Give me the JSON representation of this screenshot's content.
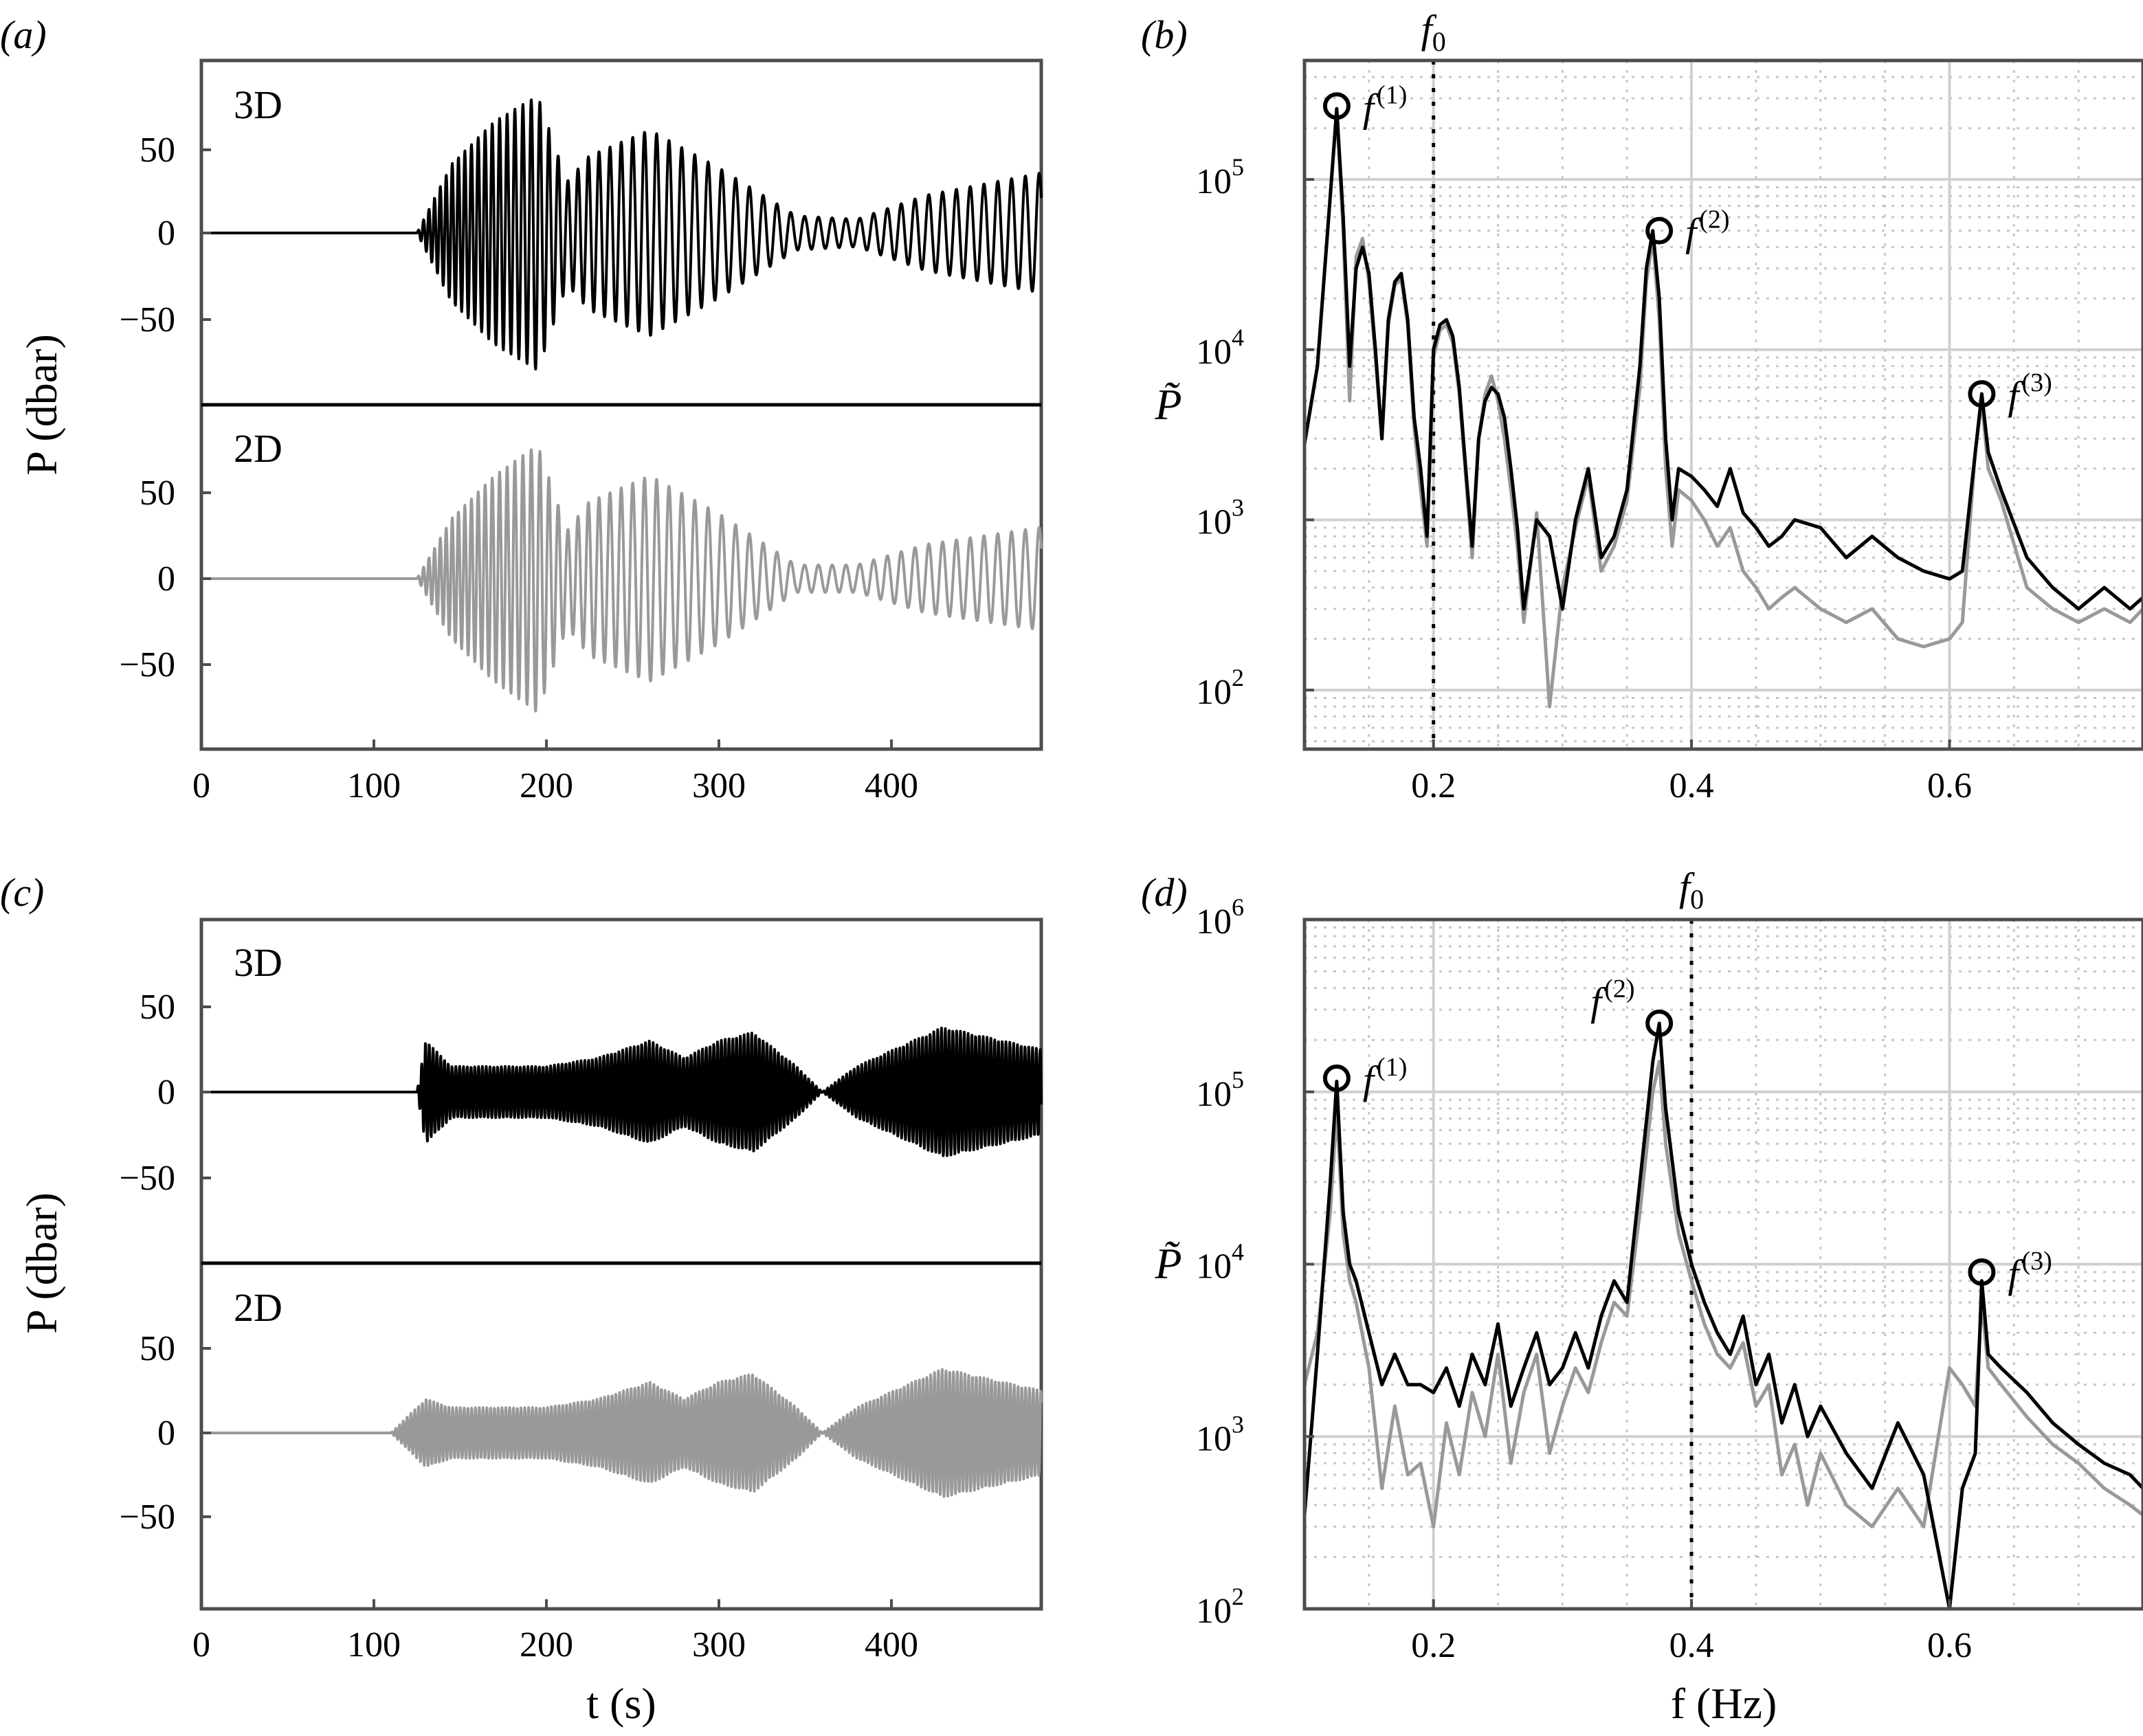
{
  "figure": {
    "panel_labels": [
      "(a)",
      "(b)",
      "(c)",
      "(d)"
    ]
  },
  "colors": {
    "three_d": "#000000",
    "two_d": "#999999",
    "frame": "#4d4d4d",
    "grid": "#cccccc",
    "f0_line": "#000000"
  },
  "chart_data": [
    {
      "id": "a",
      "type": "line",
      "panel_label": "(a)",
      "ylabel": "P (dbar)",
      "xlim": [
        0,
        487
      ],
      "xticks": [
        "0",
        "100",
        "200",
        "300",
        "400"
      ],
      "yticks": [
        "50",
        "0",
        "−50"
      ],
      "subplots": [
        {
          "label": "3D",
          "ylim": [
            -100,
            100
          ],
          "color": "#000000",
          "onset_s": 125,
          "envelope": {
            "t": [
              125,
              145,
              170,
              195,
              212,
              225,
              260,
              300,
              345,
              380,
              420,
              487
            ],
            "amp": [
              0,
              40,
              65,
              80,
              30,
              45,
              60,
              38,
              10,
              8,
              22,
              35
            ]
          },
          "carrier_period_s": {
            "t": [
              125,
              180,
              220,
              300,
              487
            ],
            "T": [
              3,
              4.5,
              6,
              8,
              8
            ]
          }
        },
        {
          "label": "2D",
          "ylim": [
            -100,
            100
          ],
          "color": "#999999",
          "onset_s": 125,
          "envelope": {
            "t": [
              125,
              145,
              170,
              195,
              212,
              225,
              260,
              300,
              345,
              380,
              420,
              487
            ],
            "amp": [
              0,
              35,
              60,
              78,
              28,
              45,
              60,
              38,
              8,
              8,
              20,
              30
            ]
          },
          "carrier_period_s": {
            "t": [
              125,
              180,
              220,
              300,
              487
            ],
            "T": [
              3,
              4.5,
              6,
              8,
              8
            ]
          }
        }
      ]
    },
    {
      "id": "b",
      "type": "line",
      "panel_label": "(b)",
      "ylabel": "P̃",
      "yscale": "log",
      "xlim": [
        0.1,
        0.75
      ],
      "ylim": [
        45,
        500000
      ],
      "xticks": [
        "0.2",
        "0.4",
        "0.6"
      ],
      "yticks": [
        "10",
        "10",
        "10",
        "10"
      ],
      "ytick_exponents": [
        "2",
        "3",
        "4",
        "5"
      ],
      "f0_line": {
        "label": "f",
        "subscript": "0",
        "x": 0.2
      },
      "markers": [
        {
          "label": "f",
          "superscript": "(1)",
          "x": 0.125,
          "y": 270000
        },
        {
          "label": "f",
          "superscript": "(2)",
          "x": 0.375,
          "y": 50000
        },
        {
          "label": "f",
          "superscript": "(3)",
          "x": 0.625,
          "y": 5500
        }
      ],
      "series": [
        {
          "color": "#000000",
          "x": [
            0.1,
            0.11,
            0.12,
            0.125,
            0.13,
            0.135,
            0.14,
            0.145,
            0.15,
            0.155,
            0.16,
            0.165,
            0.17,
            0.175,
            0.18,
            0.185,
            0.19,
            0.195,
            0.2,
            0.205,
            0.21,
            0.215,
            0.22,
            0.225,
            0.23,
            0.235,
            0.24,
            0.245,
            0.25,
            0.255,
            0.26,
            0.265,
            0.27,
            0.28,
            0.29,
            0.3,
            0.31,
            0.32,
            0.33,
            0.34,
            0.35,
            0.36,
            0.365,
            0.37,
            0.375,
            0.38,
            0.385,
            0.39,
            0.4,
            0.41,
            0.42,
            0.43,
            0.44,
            0.45,
            0.46,
            0.47,
            0.48,
            0.5,
            0.52,
            0.54,
            0.56,
            0.58,
            0.6,
            0.61,
            0.62,
            0.625,
            0.63,
            0.64,
            0.66,
            0.68,
            0.7,
            0.72,
            0.74,
            0.75
          ],
          "y": [
            2800,
            8000,
            80000,
            260000,
            60000,
            8000,
            30000,
            40000,
            28000,
            10000,
            3000,
            15000,
            25000,
            28000,
            15000,
            4000,
            2000,
            800,
            10000,
            14000,
            15000,
            12000,
            6000,
            2000,
            700,
            3000,
            5000,
            6000,
            5500,
            4000,
            2000,
            900,
            300,
            1000,
            800,
            300,
            1000,
            2000,
            600,
            800,
            1500,
            8000,
            30000,
            50000,
            20000,
            3000,
            1000,
            2000,
            1800,
            1500,
            1200,
            2000,
            1100,
            900,
            700,
            800,
            1000,
            900,
            600,
            800,
            600,
            500,
            450,
            500,
            2500,
            5500,
            2500,
            1500,
            600,
            400,
            300,
            400,
            300,
            350
          ]
        },
        {
          "color": "#999999",
          "x": [
            0.1,
            0.11,
            0.12,
            0.125,
            0.13,
            0.135,
            0.14,
            0.145,
            0.15,
            0.155,
            0.16,
            0.165,
            0.17,
            0.175,
            0.18,
            0.185,
            0.19,
            0.195,
            0.2,
            0.205,
            0.21,
            0.215,
            0.22,
            0.225,
            0.23,
            0.235,
            0.24,
            0.245,
            0.25,
            0.255,
            0.26,
            0.265,
            0.27,
            0.28,
            0.29,
            0.3,
            0.31,
            0.32,
            0.33,
            0.34,
            0.35,
            0.36,
            0.365,
            0.37,
            0.375,
            0.38,
            0.385,
            0.39,
            0.4,
            0.41,
            0.42,
            0.43,
            0.44,
            0.45,
            0.46,
            0.47,
            0.48,
            0.5,
            0.52,
            0.54,
            0.56,
            0.58,
            0.6,
            0.61,
            0.62,
            0.625,
            0.63,
            0.64,
            0.66,
            0.68,
            0.7,
            0.72,
            0.74,
            0.75
          ],
          "y": [
            2800,
            8000,
            80000,
            250000,
            50000,
            5000,
            35000,
            45000,
            25000,
            9000,
            3000,
            14000,
            24000,
            26000,
            14000,
            3500,
            1500,
            700,
            9000,
            13000,
            14000,
            11000,
            5500,
            1800,
            600,
            3000,
            5500,
            7000,
            5000,
            3000,
            1500,
            700,
            250,
            1100,
            80,
            400,
            900,
            1800,
            500,
            700,
            1300,
            6000,
            25000,
            45000,
            15000,
            2000,
            700,
            1500,
            1300,
            1000,
            700,
            900,
            500,
            400,
            300,
            350,
            400,
            300,
            250,
            300,
            200,
            180,
            200,
            250,
            2500,
            5000,
            2000,
            1300,
            400,
            300,
            250,
            300,
            250,
            300
          ]
        }
      ]
    },
    {
      "id": "c",
      "type": "line",
      "panel_label": "(c)",
      "ylabel": "P (dbar)",
      "xlabel": "t (s)",
      "xlim": [
        0,
        487
      ],
      "xticks": [
        "0",
        "100",
        "200",
        "300",
        "400"
      ],
      "yticks": [
        "50",
        "0",
        "−50"
      ],
      "subplots": [
        {
          "label": "3D",
          "ylim": [
            -100,
            100
          ],
          "color": "#000000",
          "onset_s": 125,
          "envelope": {
            "t": [
              125,
              130,
              145,
              160,
              200,
              230,
              260,
              280,
              300,
              320,
              345,
              360,
              380,
              430,
              487
            ],
            "amp": [
              0,
              30,
              15,
              15,
              15,
              20,
              30,
              20,
              30,
              35,
              15,
              0,
              15,
              38,
              25
            ]
          },
          "carrier_period_s": {
            "t": [
              125,
              487
            ],
            "T": [
              2.2,
              2.2
            ]
          }
        },
        {
          "label": "2D",
          "ylim": [
            -100,
            100
          ],
          "color": "#999999",
          "onset_s": 110,
          "envelope": {
            "t": [
              110,
              130,
              145,
              160,
              200,
              230,
              260,
              280,
              300,
              320,
              345,
              360,
              380,
              430,
              487
            ],
            "amp": [
              0,
              20,
              15,
              15,
              15,
              20,
              30,
              20,
              30,
              35,
              15,
              0,
              15,
              38,
              25
            ]
          },
          "carrier_period_s": {
            "t": [
              110,
              487
            ],
            "T": [
              2.2,
              2.2
            ]
          }
        }
      ]
    },
    {
      "id": "d",
      "type": "line",
      "panel_label": "(d)",
      "ylabel": "P̃",
      "xlabel": "f (Hz)",
      "yscale": "log",
      "xlim": [
        0.1,
        0.75
      ],
      "ylim": [
        100,
        1000000
      ],
      "xticks": [
        "0.2",
        "0.4",
        "0.6"
      ],
      "yticks": [
        "10",
        "10",
        "10",
        "10",
        "10"
      ],
      "ytick_exponents": [
        "2",
        "3",
        "4",
        "5",
        "6"
      ],
      "f0_line": {
        "label": "f",
        "subscript": "0",
        "x": 0.4
      },
      "markers": [
        {
          "label": "f",
          "superscript": "(1)",
          "x": 0.125,
          "y": 120000
        },
        {
          "label": "f",
          "superscript": "(2)",
          "x": 0.375,
          "y": 250000
        },
        {
          "label": "f",
          "superscript": "(3)",
          "x": 0.625,
          "y": 9000
        }
      ],
      "series": [
        {
          "color": "#000000",
          "x": [
            0.1,
            0.11,
            0.12,
            0.125,
            0.13,
            0.135,
            0.14,
            0.15,
            0.16,
            0.17,
            0.18,
            0.19,
            0.2,
            0.21,
            0.22,
            0.23,
            0.24,
            0.25,
            0.26,
            0.27,
            0.28,
            0.29,
            0.3,
            0.31,
            0.32,
            0.33,
            0.34,
            0.35,
            0.36,
            0.37,
            0.375,
            0.38,
            0.39,
            0.4,
            0.41,
            0.42,
            0.43,
            0.44,
            0.45,
            0.46,
            0.47,
            0.48,
            0.49,
            0.5,
            0.52,
            0.54,
            0.56,
            0.58,
            0.6,
            0.61,
            0.62,
            0.625,
            0.63,
            0.64,
            0.66,
            0.68,
            0.7,
            0.72,
            0.74,
            0.75
          ],
          "y": [
            350,
            3000,
            30000,
            115000,
            20000,
            10000,
            8000,
            4000,
            2000,
            3000,
            2000,
            2000,
            1800,
            2500,
            1500,
            3000,
            2000,
            4500,
            1500,
            2500,
            4000,
            2000,
            2500,
            4000,
            2500,
            5000,
            8000,
            6000,
            30000,
            150000,
            250000,
            80000,
            20000,
            10000,
            6000,
            4000,
            3000,
            5000,
            2000,
            3000,
            1200,
            2000,
            1000,
            1500,
            800,
            500,
            1200,
            600,
            100,
            500,
            800,
            8000,
            3000,
            2500,
            1800,
            1200,
            900,
            700,
            600,
            500
          ]
        },
        {
          "color": "#999999",
          "x": [
            0.1,
            0.11,
            0.12,
            0.125,
            0.13,
            0.135,
            0.14,
            0.15,
            0.16,
            0.17,
            0.18,
            0.19,
            0.2,
            0.21,
            0.22,
            0.23,
            0.24,
            0.25,
            0.26,
            0.27,
            0.28,
            0.29,
            0.3,
            0.31,
            0.32,
            0.33,
            0.34,
            0.35,
            0.36,
            0.37,
            0.375,
            0.38,
            0.39,
            0.4,
            0.41,
            0.42,
            0.43,
            0.44,
            0.45,
            0.46,
            0.47,
            0.48,
            0.49,
            0.5,
            0.52,
            0.54,
            0.56,
            0.58,
            0.6,
            0.61,
            0.62,
            0.625,
            0.63,
            0.64,
            0.66,
            0.68,
            0.7,
            0.72,
            0.74,
            0.75
          ],
          "y": [
            2000,
            4000,
            20000,
            80000,
            15000,
            8000,
            6000,
            2500,
            500,
            1500,
            600,
            700,
            300,
            1200,
            600,
            1800,
            1000,
            3000,
            700,
            1800,
            3000,
            800,
            1500,
            2500,
            1800,
            3500,
            6000,
            5000,
            20000,
            100000,
            150000,
            50000,
            15000,
            8000,
            4500,
            3000,
            2500,
            3500,
            1500,
            2000,
            600,
            900,
            400,
            800,
            400,
            300,
            500,
            300,
            2500,
            2000,
            1500,
            6000,
            2500,
            2000,
            1300,
            900,
            700,
            500,
            400,
            350
          ]
        }
      ]
    }
  ]
}
